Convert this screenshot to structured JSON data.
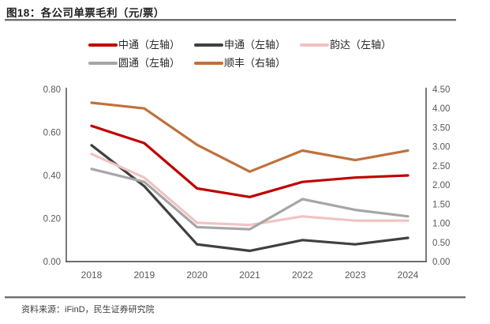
{
  "header": {
    "title": "图18：各公司单票毛利（元/票）"
  },
  "footer": {
    "source": "资料来源：iFinD，民生证券研究院"
  },
  "chart_data": {
    "type": "line",
    "title": "图18：各公司单票毛利（元/票）",
    "categories": [
      "2018",
      "2019",
      "2020",
      "2021",
      "2022",
      "2023",
      "2024"
    ],
    "series": [
      {
        "name": "中通（左轴）",
        "axis": "left",
        "color": "#C00000",
        "values": [
          0.63,
          0.55,
          0.34,
          0.3,
          0.37,
          0.39,
          0.4
        ]
      },
      {
        "name": "申通（左轴）",
        "axis": "left",
        "color": "#404040",
        "values": [
          0.54,
          0.35,
          0.08,
          0.05,
          0.1,
          0.08,
          0.11
        ]
      },
      {
        "name": "韵达（左轴）",
        "axis": "left",
        "color": "#F0C3C2",
        "values": [
          0.5,
          0.39,
          0.18,
          0.17,
          0.21,
          0.19,
          0.19
        ]
      },
      {
        "name": "圆通（左轴）",
        "axis": "left",
        "color": "#A6A6A6",
        "values": [
          0.43,
          0.37,
          0.16,
          0.15,
          0.29,
          0.24,
          0.21
        ]
      },
      {
        "name": "顺丰（右轴）",
        "axis": "right",
        "color": "#C0713B",
        "values": [
          4.15,
          4.0,
          3.05,
          2.35,
          2.9,
          2.65,
          2.9
        ]
      }
    ],
    "left_axis": {
      "min": 0,
      "max": 0.8,
      "tick_labels": [
        "0.00",
        "0.20",
        "0.40",
        "0.60",
        "0.80"
      ]
    },
    "right_axis": {
      "min": 0,
      "max": 4.5,
      "tick_labels": [
        "0.00",
        "0.50",
        "1.00",
        "1.50",
        "2.00",
        "2.50",
        "3.00",
        "3.50",
        "4.00",
        "4.50"
      ]
    },
    "legend_position": "top",
    "grid": false,
    "axis_line_color": "#595959",
    "tick_label_color": "#595959"
  }
}
